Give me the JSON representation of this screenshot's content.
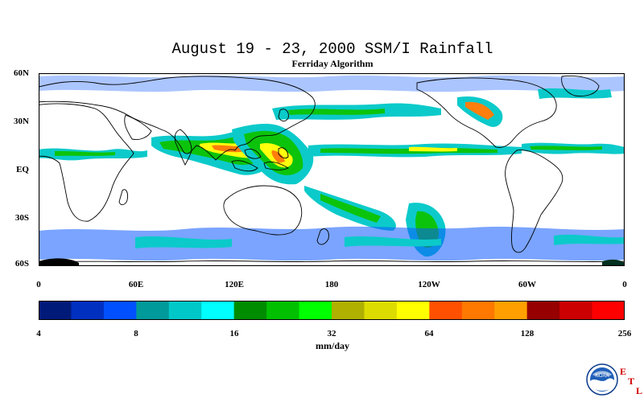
{
  "title": "August 19 - 23, 2000 SSM/I Rainfall",
  "subtitle": "Ferriday Algorithm",
  "lat_labels": [
    "60N",
    "30N",
    "EQ",
    "30S",
    "60S"
  ],
  "lon_labels": [
    "0",
    "60E",
    "120E",
    "180",
    "120W",
    "60W",
    "0"
  ],
  "colorbar": {
    "unit": "mm/day",
    "ticks": [
      "4",
      "8",
      "16",
      "32",
      "64",
      "128",
      "256"
    ],
    "colors": [
      "#001a7a",
      "#0030c0",
      "#0050ff",
      "#009a9a",
      "#00c8c8",
      "#00ffff",
      "#008c00",
      "#00c000",
      "#00ff00",
      "#b0b000",
      "#dcdc00",
      "#ffff00",
      "#ff5000",
      "#ff7800",
      "#ffa000",
      "#960000",
      "#cc0000",
      "#ff0000"
    ]
  },
  "logo": {
    "name": "noaa-logo",
    "text": "NOAA"
  },
  "etl_letters": [
    "E",
    "T",
    "L"
  ]
}
